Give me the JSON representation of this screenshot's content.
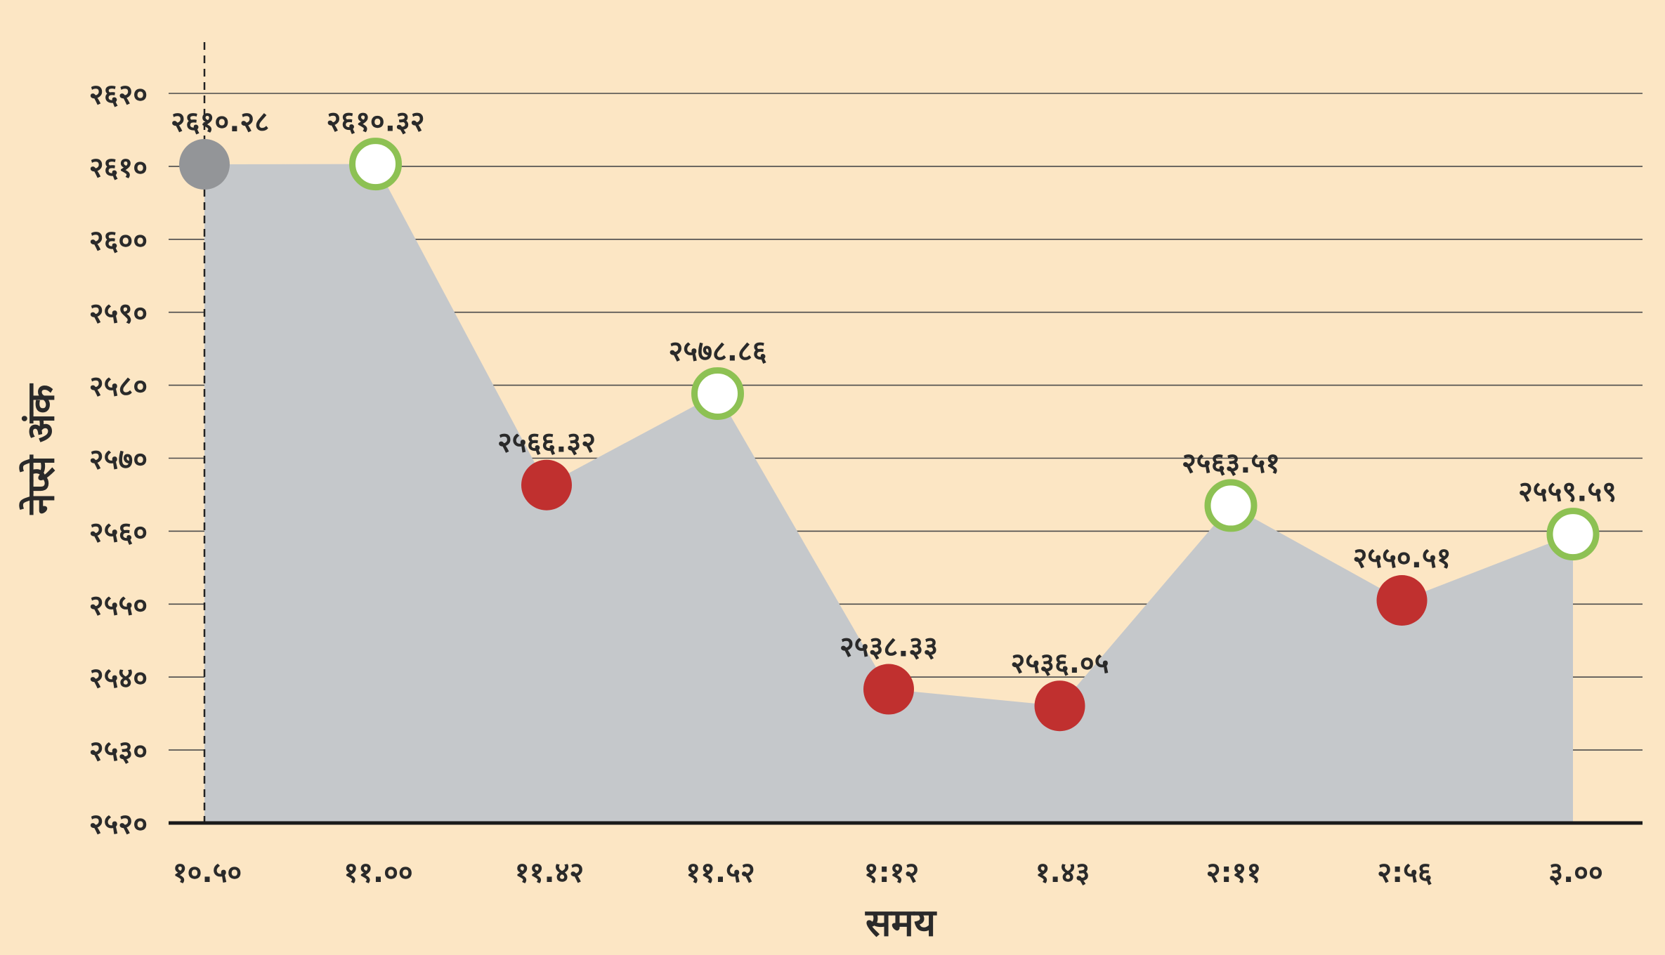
{
  "chart_data": {
    "type": "area",
    "title": "",
    "xlabel": "समय",
    "ylabel": "नेप्से अंक",
    "ylim": [
      2520,
      2620
    ],
    "y_ticks": [
      2520,
      2530,
      2540,
      2550,
      2560,
      2570,
      2580,
      2590,
      2600,
      2610,
      2620
    ],
    "y_tick_labels": [
      "२५२०",
      "२५३०",
      "२५४०",
      "२५५०",
      "२५६०",
      "२५७०",
      "२५८०",
      "२५९०",
      "२६००",
      "२६१०",
      "२६२०"
    ],
    "grid": true,
    "categories": [
      "१०.५०",
      "११.००",
      "११.४२",
      "११.५२",
      "१:१२",
      "१.४३",
      "२:११",
      "२:५६",
      "३.००"
    ],
    "values": [
      2610.28,
      2610.32,
      2566.32,
      2578.86,
      2538.33,
      2536.05,
      2563.51,
      2550.51,
      2559.59
    ],
    "data_labels": [
      "२६१०.२८",
      "२६१०.३२",
      "२५६६.३२",
      "२५७८.८६",
      "२५३८.३३",
      "२५३६.०५",
      "२५६३.५१",
      "२५५०.५१",
      "२५५९.५९"
    ],
    "point_status": [
      "open",
      "up",
      "down",
      "up",
      "down",
      "down",
      "up",
      "down",
      "up"
    ],
    "colors": {
      "background": "#fce6c4",
      "area": "#c5c8cb",
      "open": "#939598",
      "up_ring": "#8dc153",
      "up_fill": "#ffffff",
      "down": "#c0302f",
      "grid": "#4a4a4a",
      "text": "#2a2a2a"
    }
  }
}
